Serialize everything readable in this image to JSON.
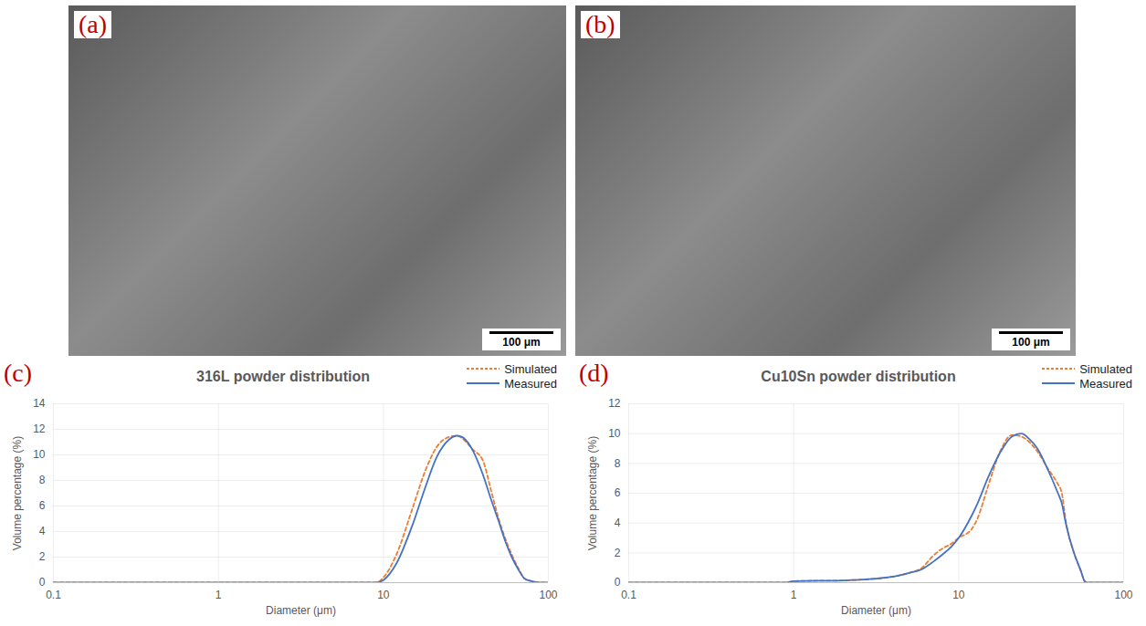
{
  "chart_data": [
    {
      "type": "line",
      "panel_label": "(c)",
      "title": "316L powder distribution",
      "xlabel": "Diameter (μm)",
      "ylabel": "Volume percentage (%)",
      "x": [
        0.1,
        1,
        5,
        9,
        10,
        12,
        15,
        18,
        21,
        25,
        28,
        30,
        35,
        40,
        45,
        50,
        55,
        60,
        66,
        72,
        80,
        90,
        100
      ],
      "series": [
        {
          "name": "Simulated",
          "color": "#ed7d31",
          "line_style": "dashed",
          "values": [
            0,
            0,
            0,
            0,
            0.4,
            2.2,
            5.8,
            8.8,
            10.6,
            11.4,
            11.5,
            11.3,
            10.4,
            9.6,
            7.2,
            5.0,
            3.4,
            2.2,
            1.1,
            0.3,
            0.1,
            0,
            0
          ]
        },
        {
          "name": "Measured",
          "color": "#4472c4",
          "line_style": "solid",
          "values": [
            0,
            0,
            0,
            0,
            0.2,
            1.5,
            4.5,
            7.5,
            9.8,
            11.2,
            11.5,
            11.4,
            10.3,
            8.5,
            6.5,
            4.8,
            3.2,
            2.0,
            1.0,
            0.3,
            0.1,
            0,
            0
          ]
        }
      ],
      "xlim": [
        0.1,
        100
      ],
      "xticks": [
        0.1,
        1,
        10,
        100
      ],
      "ylim": [
        0,
        14
      ],
      "yticks": [
        0,
        2,
        4,
        6,
        8,
        10,
        12,
        14
      ],
      "log": "x",
      "grid": true,
      "legend": "top-right"
    },
    {
      "type": "line",
      "panel_label": "(d)",
      "title": "Cu10Sn powder distribution",
      "xlabel": "Diameter (μm)",
      "ylabel": "Volume percentage (%)",
      "x": [
        0.1,
        0.9,
        1,
        2,
        3,
        4,
        5,
        6,
        7,
        8,
        9,
        10,
        12,
        13,
        15,
        18,
        21,
        24,
        27,
        30,
        35,
        40,
        42,
        45,
        50,
        55,
        58,
        60,
        100
      ],
      "series": [
        {
          "name": "Simulated",
          "color": "#ed7d31",
          "line_style": "dashed",
          "values": [
            0,
            0,
            0.1,
            0.15,
            0.25,
            0.4,
            0.65,
            1.0,
            1.8,
            2.3,
            2.6,
            3.0,
            3.6,
            4.3,
            6.4,
            8.9,
            9.9,
            9.8,
            9.4,
            8.8,
            7.6,
            6.6,
            6.1,
            3.9,
            2.0,
            0.8,
            0.1,
            0,
            0
          ]
        },
        {
          "name": "Measured",
          "color": "#4472c4",
          "line_style": "solid",
          "values": [
            0,
            0,
            0.1,
            0.15,
            0.25,
            0.4,
            0.65,
            0.9,
            1.4,
            1.9,
            2.4,
            3.0,
            4.5,
            5.3,
            7.0,
            8.8,
            9.8,
            10.0,
            9.6,
            9.0,
            7.5,
            6.0,
            5.4,
            3.8,
            2.0,
            0.8,
            0.1,
            0,
            0
          ]
        }
      ],
      "xlim": [
        0.1,
        100
      ],
      "xticks": [
        0.1,
        1,
        10,
        100
      ],
      "ylim": [
        0,
        12
      ],
      "yticks": [
        0,
        2,
        4,
        6,
        8,
        10,
        12
      ],
      "log": "x",
      "grid": true,
      "legend": "top-right"
    }
  ],
  "images": [
    {
      "label": "(a)",
      "scale_bar": "100 μm"
    },
    {
      "label": "(b)",
      "scale_bar": "100 μm"
    }
  ]
}
